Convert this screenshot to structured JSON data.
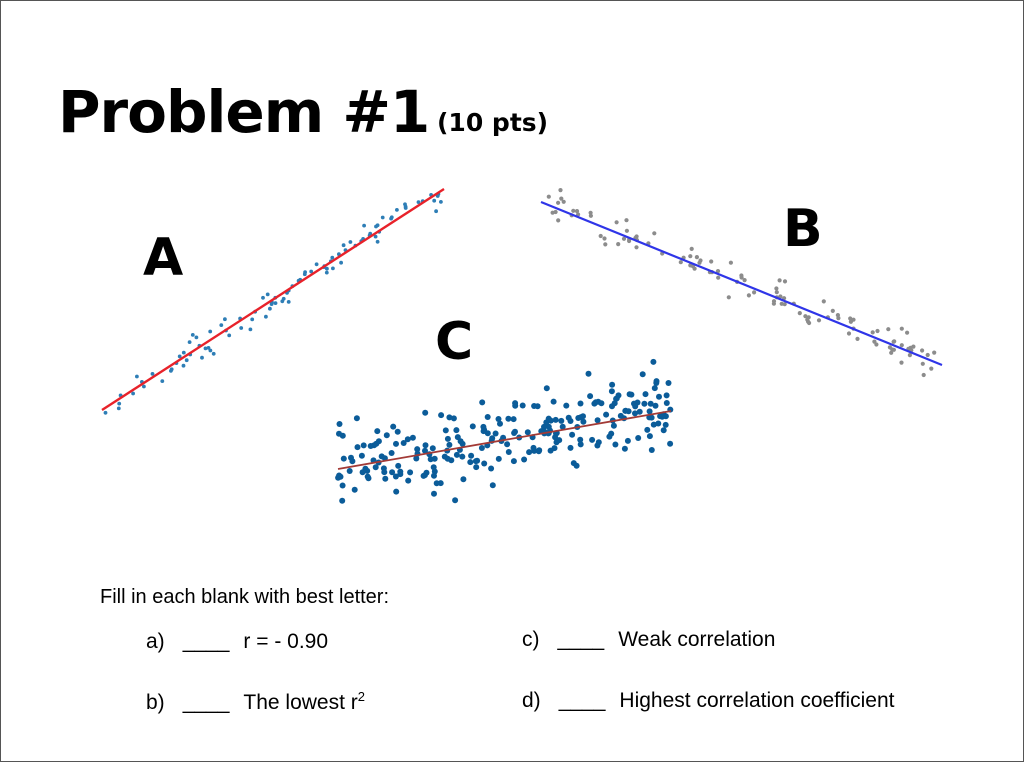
{
  "header": {
    "title": "Problem #1",
    "points": "(10 pts)"
  },
  "plots": [
    {
      "label": "A",
      "dot_color": "#2e7eb6",
      "line_color": "#e8222a"
    },
    {
      "label": "B",
      "dot_color": "#8c8c8c",
      "line_color": "#2f35e8"
    },
    {
      "label": "C",
      "dot_color": "#0b5c99",
      "line_color": "#a23a36"
    }
  ],
  "instructions": "Fill in each blank with best letter:",
  "questions": {
    "a": {
      "letter": "a)",
      "blank": "____",
      "text": "r =  - 0.90"
    },
    "b": {
      "letter": "b)",
      "blank": "____",
      "text": "The lowest r",
      "sup": "2"
    },
    "c": {
      "letter": "c)",
      "blank": "____",
      "text": "Weak correlation"
    },
    "d": {
      "letter": "d)",
      "blank": "____",
      "text": "Highest correlation coefficient"
    }
  }
}
